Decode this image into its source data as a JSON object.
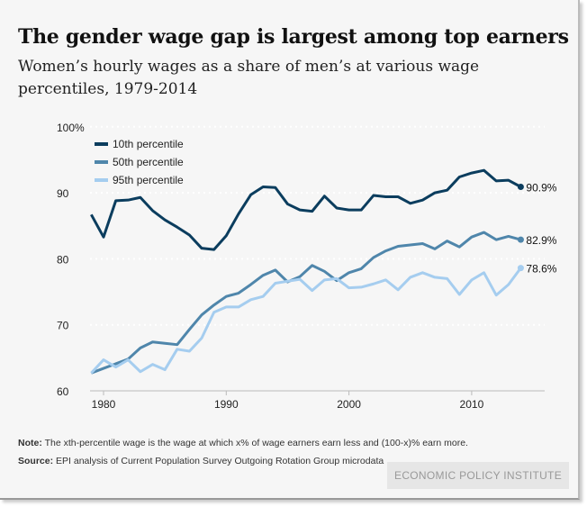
{
  "chart_data": {
    "type": "line",
    "title": "The gender wage gap is largest among top earners",
    "subtitle": "Women’s hourly wages as a share of men’s at various wage percentiles, 1979-2014",
    "ylim": [
      60,
      100
    ],
    "yticks": [
      {
        "v": 60,
        "label": "60"
      },
      {
        "v": 70,
        "label": "70"
      },
      {
        "v": 80,
        "label": "80"
      },
      {
        "v": 90,
        "label": "90"
      },
      {
        "v": 100,
        "label": "100%"
      }
    ],
    "xticks": [
      1980,
      1990,
      2000,
      2010
    ],
    "grid": true,
    "legend_placement": "top-left",
    "x": [
      1979,
      1980,
      1981,
      1982,
      1983,
      1984,
      1985,
      1986,
      1987,
      1988,
      1989,
      1990,
      1991,
      1992,
      1993,
      1994,
      1995,
      1996,
      1997,
      1998,
      1999,
      2000,
      2001,
      2002,
      2003,
      2004,
      2005,
      2006,
      2007,
      2008,
      2009,
      2010,
      2011,
      2012,
      2013,
      2014
    ],
    "series": [
      {
        "name": "10th percentile",
        "color": "#0b3d5e",
        "end_label": "90.9%",
        "values": [
          86.7,
          83.3,
          88.8,
          88.9,
          89.3,
          87.3,
          85.9,
          84.8,
          83.6,
          81.6,
          81.4,
          83.5,
          86.8,
          89.7,
          90.9,
          90.8,
          88.3,
          87.4,
          87.2,
          89.5,
          87.7,
          87.4,
          87.4,
          89.6,
          89.4,
          89.4,
          88.4,
          88.9,
          90.0,
          90.4,
          92.4,
          93.0,
          93.4,
          91.8,
          91.9,
          90.9
        ]
      },
      {
        "name": "50th percentile",
        "color": "#4f86ab",
        "end_label": "82.9%",
        "values": [
          62.7,
          63.4,
          64.1,
          64.8,
          66.5,
          67.4,
          67.2,
          67.0,
          69.3,
          71.5,
          73.0,
          74.3,
          74.8,
          76.1,
          77.5,
          78.3,
          76.5,
          77.3,
          79.0,
          78.1,
          76.7,
          77.9,
          78.5,
          80.2,
          81.2,
          81.9,
          82.1,
          82.3,
          81.5,
          82.7,
          81.8,
          83.3,
          84.0,
          82.9,
          83.4,
          82.9
        ]
      },
      {
        "name": "95th percentile",
        "color": "#a5cdef",
        "end_label": "78.6%",
        "values": [
          62.7,
          64.7,
          63.6,
          64.7,
          62.9,
          64.0,
          63.2,
          66.3,
          66.0,
          68.0,
          71.9,
          72.7,
          72.7,
          73.8,
          74.3,
          76.3,
          76.6,
          76.9,
          75.2,
          76.8,
          77.0,
          75.6,
          75.7,
          76.2,
          76.8,
          75.3,
          77.2,
          77.9,
          77.2,
          77.0,
          74.6,
          76.8,
          77.9,
          74.5,
          76.1,
          78.6
        ]
      }
    ]
  },
  "note_label": "Note:",
  "note_text": " The xth-percentile wage is the wage at which x% of wage earners earn less and (100-x)% earn more.",
  "source_label": "Source:",
  "source_text": " EPI analysis of Current Population Survey Outgoing Rotation Group microdata",
  "brand": "ECONOMIC POLICY INSTITUTE"
}
